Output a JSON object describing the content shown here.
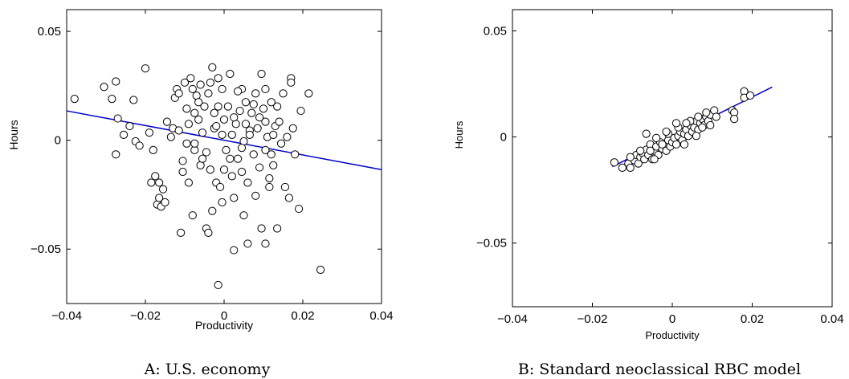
{
  "chart_data": [
    {
      "type": "scatter",
      "caption": "A: U.S. economy",
      "xlabel": "Productivity",
      "ylabel": "Hours",
      "xlim": [
        -0.04,
        0.04
      ],
      "ylim": [
        -0.075,
        0.06
      ],
      "xticks": [
        -0.04,
        -0.02,
        0,
        0.02,
        0.04
      ],
      "xtick_labels": [
        "−0.04",
        "−0.02",
        "0",
        "0.02",
        "0.04"
      ],
      "yticks": [
        0.05,
        0,
        -0.05
      ],
      "ytick_labels": [
        "0.05",
        "0",
        "−0.05"
      ],
      "grid": false,
      "fit_line": {
        "x": [
          -0.04,
          0.04
        ],
        "y": [
          0.0135,
          -0.0135
        ],
        "color": "#0000cc"
      },
      "points": [
        [
          -0.038,
          0.019
        ],
        [
          -0.0305,
          0.0245
        ],
        [
          -0.0285,
          0.019
        ],
        [
          -0.0275,
          0.027
        ],
        [
          -0.027,
          0.01
        ],
        [
          -0.0275,
          -0.0065
        ],
        [
          -0.0255,
          0.0025
        ],
        [
          -0.024,
          0.0065
        ],
        [
          -0.023,
          0.0185
        ],
        [
          -0.0225,
          -0.0005
        ],
        [
          -0.0215,
          -0.0025
        ],
        [
          -0.02,
          0.033
        ],
        [
          -0.019,
          0.0035
        ],
        [
          -0.0185,
          -0.0195
        ],
        [
          -0.018,
          -0.0045
        ],
        [
          -0.0175,
          -0.0165
        ],
        [
          -0.017,
          -0.0295
        ],
        [
          -0.0165,
          -0.0195
        ],
        [
          -0.0165,
          -0.0265
        ],
        [
          -0.016,
          -0.0305
        ],
        [
          -0.0155,
          -0.0225
        ],
        [
          -0.015,
          -0.0285
        ],
        [
          -0.0145,
          0.0085
        ],
        [
          -0.0135,
          0.0015
        ],
        [
          -0.013,
          0.0055
        ],
        [
          -0.0125,
          0.0195
        ],
        [
          -0.012,
          0.0235
        ],
        [
          -0.0115,
          0.0215
        ],
        [
          -0.0115,
          0.0045
        ],
        [
          -0.011,
          -0.0425
        ],
        [
          -0.0105,
          -0.0095
        ],
        [
          -0.0105,
          -0.0145
        ],
        [
          -0.01,
          0.0265
        ],
        [
          -0.0095,
          -0.0015
        ],
        [
          -0.009,
          -0.0195
        ],
        [
          -0.009,
          0.0075
        ],
        [
          -0.0085,
          0.0285
        ],
        [
          -0.008,
          -0.0345
        ],
        [
          -0.0075,
          0.0125
        ],
        [
          -0.0075,
          -0.0045
        ],
        [
          -0.007,
          0.0205
        ],
        [
          -0.0065,
          0.0095
        ],
        [
          -0.006,
          -0.0115
        ],
        [
          -0.006,
          0.0255
        ],
        [
          -0.0055,
          0.0035
        ],
        [
          -0.005,
          0.0155
        ],
        [
          -0.0045,
          -0.0055
        ],
        [
          -0.004,
          0.0215
        ],
        [
          -0.0035,
          -0.0135
        ],
        [
          -0.003,
          -0.0325
        ],
        [
          -0.003,
          0.0335
        ],
        [
          -0.0025,
          0.0055
        ],
        [
          -0.0025,
          0.0125
        ],
        [
          -0.002,
          -0.0195
        ],
        [
          -0.0015,
          0.0285
        ],
        [
          -0.001,
          -0.0215
        ],
        [
          -0.0005,
          0.0025
        ],
        [
          -0.0005,
          0.0235
        ],
        [
          0.0,
          -0.0135
        ],
        [
          0.0,
          0.0095
        ],
        [
          0.0005,
          -0.0045
        ],
        [
          0.001,
          0.0155
        ],
        [
          0.0015,
          0.0305
        ],
        [
          0.002,
          -0.0165
        ],
        [
          0.002,
          0.0025
        ],
        [
          0.0025,
          -0.0505
        ],
        [
          0.003,
          0.0075
        ],
        [
          0.0035,
          -0.0085
        ],
        [
          0.004,
          0.0135
        ],
        [
          0.0045,
          0.0235
        ],
        [
          0.005,
          -0.0345
        ],
        [
          0.005,
          -0.0005
        ],
        [
          0.0055,
          0.0175
        ],
        [
          0.006,
          -0.0195
        ],
        [
          0.0065,
          0.0045
        ],
        [
          0.007,
          0.0125
        ],
        [
          0.0075,
          -0.0065
        ],
        [
          0.008,
          0.0215
        ],
        [
          0.008,
          -0.0255
        ],
        [
          0.0085,
          0.0055
        ],
        [
          0.009,
          -0.0125
        ],
        [
          0.0095,
          0.0305
        ],
        [
          0.0095,
          -0.0405
        ],
        [
          0.01,
          0.0145
        ],
        [
          0.0105,
          -0.0045
        ],
        [
          0.011,
          0.0015
        ],
        [
          0.0115,
          -0.0175
        ],
        [
          0.012,
          0.0175
        ],
        [
          0.0125,
          -0.0115
        ],
        [
          0.013,
          0.0065
        ],
        [
          0.0135,
          -0.0405
        ],
        [
          0.014,
          0.0085
        ],
        [
          0.0145,
          -0.0015
        ],
        [
          0.015,
          0.0215
        ],
        [
          0.0155,
          -0.0215
        ],
        [
          0.016,
          0.0015
        ],
        [
          0.0165,
          -0.0265
        ],
        [
          0.017,
          0.0285
        ],
        [
          0.017,
          0.0265
        ],
        [
          0.0175,
          0.0055
        ],
        [
          0.018,
          -0.0065
        ],
        [
          0.019,
          -0.0315
        ],
        [
          0.0195,
          0.0135
        ],
        [
          0.0215,
          0.0215
        ],
        [
          0.0245,
          -0.0595
        ],
        [
          -0.0015,
          -0.0665
        ],
        [
          -0.0045,
          -0.0405
        ],
        [
          -0.004,
          -0.0425
        ],
        [
          0.0105,
          -0.0475
        ],
        [
          0.006,
          -0.0475
        ],
        [
          -0.008,
          0.0235
        ],
        [
          -0.0065,
          0.0175
        ],
        [
          -0.0035,
          0.0265
        ],
        [
          0.0025,
          0.0105
        ],
        [
          0.0065,
          0.0025
        ],
        [
          0.0035,
          0.0225
        ],
        [
          -0.0015,
          0.0155
        ],
        [
          0.0075,
          0.0165
        ],
        [
          0.0105,
          0.0085
        ],
        [
          0.0125,
          0.0025
        ],
        [
          -0.0095,
          0.0145
        ],
        [
          -0.0075,
          -0.0015
        ],
        [
          0.0015,
          -0.0085
        ],
        [
          0.0045,
          -0.0145
        ],
        [
          0.0115,
          -0.0215
        ],
        [
          0.0135,
          0.0155
        ],
        [
          0.0025,
          -0.0265
        ],
        [
          -0.0005,
          -0.0285
        ],
        [
          0.009,
          0.0105
        ],
        [
          -0.0055,
          -0.0085
        ],
        [
          0.0055,
          0.0075
        ],
        [
          -0.002,
          0.0065
        ],
        [
          0.0045,
          -0.0035
        ],
        [
          0.0105,
          0.0235
        ],
        [
          0.012,
          -0.0065
        ]
      ]
    },
    {
      "type": "scatter",
      "caption": "B: Standard neoclassical RBC model",
      "xlabel": "Productivity",
      "ylabel": "Hours",
      "xlim": [
        -0.04,
        0.04
      ],
      "ylim": [
        -0.08,
        0.06
      ],
      "xticks": [
        -0.04,
        -0.02,
        0,
        0.02,
        0.04
      ],
      "xtick_labels": [
        "−0.04",
        "−0.02",
        "0",
        "0.02",
        "0.04"
      ],
      "yticks": [
        0.05,
        0,
        -0.05
      ],
      "ytick_labels": [
        "0.05",
        "0",
        "−0.05"
      ],
      "grid": false,
      "fit_line": {
        "x": [
          -0.015,
          0.025
        ],
        "y": [
          -0.014,
          0.0235
        ],
        "color": "#0000cc"
      },
      "points": [
        [
          -0.0145,
          -0.012
        ],
        [
          -0.0125,
          -0.0145
        ],
        [
          -0.011,
          -0.0125
        ],
        [
          -0.0105,
          -0.0145
        ],
        [
          -0.0095,
          -0.011
        ],
        [
          -0.009,
          -0.0085
        ],
        [
          -0.0085,
          -0.0125
        ],
        [
          -0.008,
          -0.0095
        ],
        [
          -0.0075,
          -0.0075
        ],
        [
          -0.007,
          -0.0105
        ],
        [
          -0.0065,
          -0.006
        ],
        [
          -0.006,
          -0.0085
        ],
        [
          -0.0055,
          -0.0035
        ],
        [
          -0.005,
          -0.0105
        ],
        [
          -0.0045,
          -0.0065
        ],
        [
          -0.004,
          -0.0045
        ],
        [
          -0.0035,
          -0.0085
        ],
        [
          -0.003,
          -0.0025
        ],
        [
          -0.0025,
          -0.0055
        ],
        [
          -0.002,
          -0.0035
        ],
        [
          -0.0015,
          -0.0065
        ],
        [
          -0.001,
          -0.0015
        ],
        [
          -0.0005,
          -0.0045
        ],
        [
          0.0,
          -0.0025
        ],
        [
          0.0005,
          -0.0005
        ],
        [
          0.001,
          -0.0035
        ],
        [
          0.0015,
          0.0005
        ],
        [
          0.002,
          0.0025
        ],
        [
          0.0025,
          -0.0015
        ],
        [
          0.003,
          0.0015
        ],
        [
          0.0035,
          0.0035
        ],
        [
          0.004,
          0.0005
        ],
        [
          0.0045,
          0.0055
        ],
        [
          0.005,
          0.0025
        ],
        [
          0.0055,
          0.0045
        ],
        [
          0.006,
          0.0075
        ],
        [
          0.0065,
          0.0035
        ],
        [
          0.007,
          0.0065
        ],
        [
          0.0075,
          0.0085
        ],
        [
          0.008,
          0.0055
        ],
        [
          0.0085,
          0.0095
        ],
        [
          0.009,
          0.0075
        ],
        [
          0.0095,
          0.0105
        ],
        [
          0.0105,
          0.0125
        ],
        [
          0.011,
          0.0095
        ],
        [
          0.015,
          0.0125
        ],
        [
          0.0155,
          0.0115
        ],
        [
          0.018,
          0.0215
        ],
        [
          0.018,
          0.0185
        ],
        [
          0.0195,
          0.0195
        ],
        [
          -0.0065,
          0.0015
        ],
        [
          -0.004,
          -0.0005
        ],
        [
          -0.001,
          0.0015
        ],
        [
          0.0015,
          0.0045
        ],
        [
          0.0045,
          0.0075
        ],
        [
          0.0075,
          0.0045
        ],
        [
          0.0095,
          0.0055
        ],
        [
          -0.008,
          -0.0065
        ],
        [
          -0.0055,
          -0.0065
        ],
        [
          -0.0025,
          -0.0035
        ],
        [
          0.003,
          -0.0035
        ],
        [
          0.006,
          0.0005
        ],
        [
          0.0085,
          0.0115
        ],
        [
          -0.0105,
          -0.0095
        ],
        [
          0.0155,
          0.0085
        ],
        [
          -0.0015,
          0.0025
        ],
        [
          0.001,
          0.0065
        ],
        [
          0.0035,
          0.0065
        ],
        [
          0.0065,
          0.0095
        ],
        [
          -0.0045,
          -0.0105
        ]
      ]
    }
  ]
}
